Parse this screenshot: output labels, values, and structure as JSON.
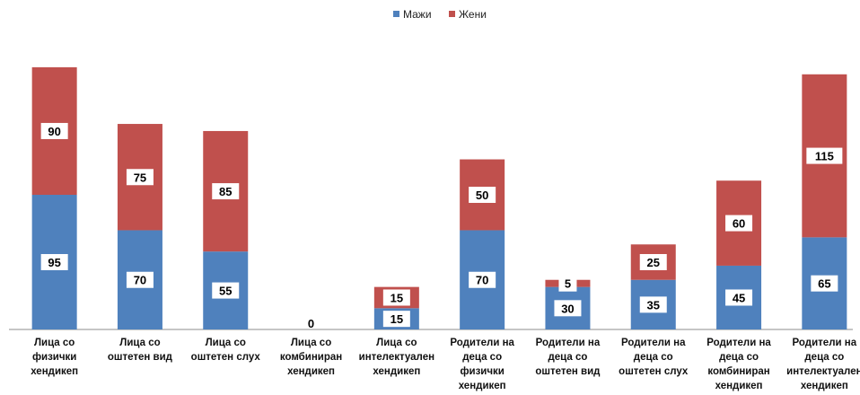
{
  "chart_data": {
    "type": "bar",
    "stacked": true,
    "categories": [
      [
        "Лица со",
        "физички",
        "хендикеп"
      ],
      [
        "Лица со",
        "оштетен вид"
      ],
      [
        "Лица со",
        "оштетен слух"
      ],
      [
        "Лица со",
        "комбиниран",
        "хендикеп"
      ],
      [
        "Лица со",
        "интелектуален",
        "хендикеп"
      ],
      [
        "Родители на",
        "деца со",
        "физички",
        "хендикеп"
      ],
      [
        "Родители на",
        "деца со",
        "оштетен вид"
      ],
      [
        "Родители на",
        "деца со",
        "оштетен слух"
      ],
      [
        "Родители на",
        "деца со",
        "комбиниран",
        "хендикеп"
      ],
      [
        "Родители на",
        "деца со",
        "интелектуален",
        "хендикеп"
      ]
    ],
    "series": [
      {
        "name": "Мажи",
        "color": "#4F81BD",
        "values": [
          95,
          70,
          55,
          0,
          15,
          70,
          30,
          35,
          45,
          65
        ]
      },
      {
        "name": "Жени",
        "color": "#C0504D",
        "values": [
          90,
          75,
          85,
          0,
          15,
          50,
          5,
          25,
          60,
          115
        ]
      }
    ],
    "zero_label": "0",
    "legend_position": "top-center",
    "ylim": [
      0,
      190
    ],
    "grid": false,
    "title": "",
    "xlabel": "",
    "ylabel": ""
  }
}
